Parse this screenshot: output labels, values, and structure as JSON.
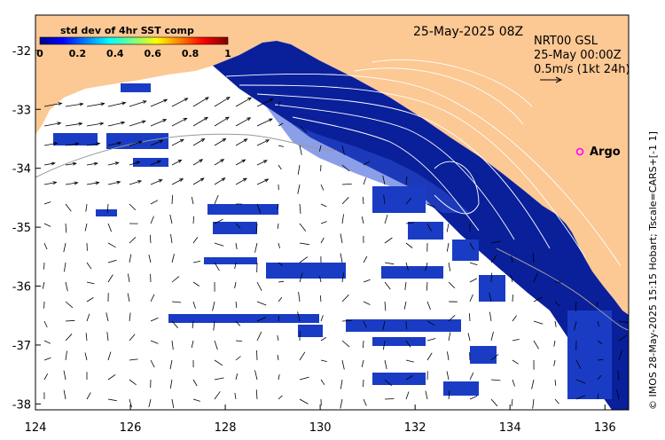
{
  "map": {
    "date_label": "25-May-2025 08Z",
    "product_label": "NRT00 GSL",
    "product_date": "25-May 00:00Z",
    "scale_label": "0.5m/s (1kt 24h)",
    "argo_label": "Argo",
    "side_caption": "© IMOS 28-May-2025 15:15 Hobart; Tscale=CARS+[-1 1]",
    "colorbar": {
      "title": "std dev of 4hr SST comp",
      "ticks": [
        "0",
        "0.2",
        "0.4",
        "0.6",
        "0.8",
        "1"
      ],
      "range": [
        0,
        1
      ]
    },
    "axes": {
      "lon_ticks": [
        "124",
        "126",
        "128",
        "130",
        "132",
        "134",
        "136"
      ],
      "lat_ticks": [
        "-32",
        "-33",
        "-34",
        "-35",
        "-36",
        "-37",
        "-38"
      ],
      "lon_range": [
        124,
        136.5
      ],
      "lat_range": [
        -38.1,
        -31.4
      ]
    },
    "colors": {
      "land": "#fcc894",
      "water": "#ffffff",
      "sst_deep": "#0a1f9a",
      "sst_mid": "#2b4fd6",
      "vector": "#000000",
      "contour": "#ffffff",
      "argo": "#ff00ff"
    }
  }
}
